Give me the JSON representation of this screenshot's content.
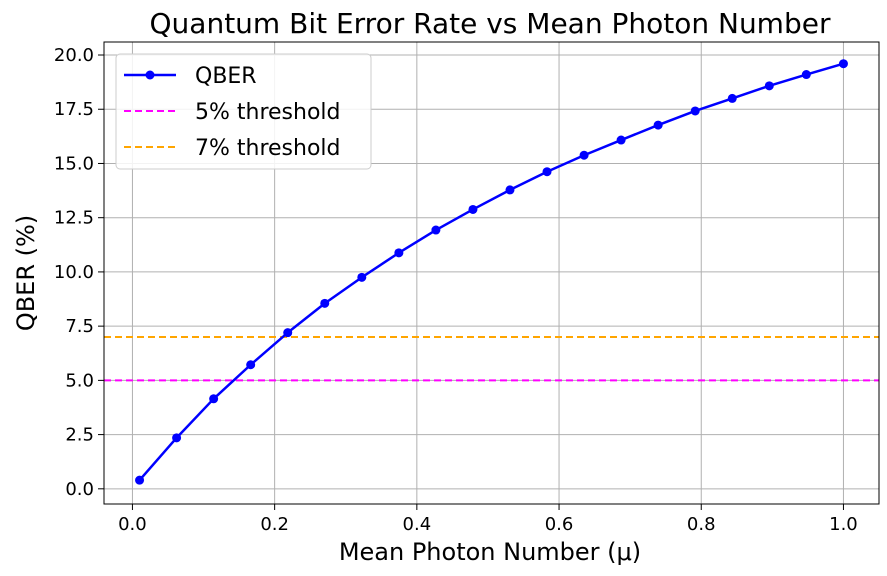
{
  "chart_data": {
    "type": "line",
    "title": "Quantum Bit Error Rate vs Mean Photon Number",
    "xlabel": "Mean Photon Number (μ)",
    "ylabel": "QBER (%)",
    "xlim": [
      -0.04,
      1.05
    ],
    "ylim": [
      -0.7,
      20.6
    ],
    "x_ticks": [
      0.0,
      0.2,
      0.4,
      0.6,
      0.8,
      1.0
    ],
    "x_tick_labels": [
      "0.0",
      "0.2",
      "0.4",
      "0.6",
      "0.8",
      "1.0"
    ],
    "y_ticks": [
      0.0,
      2.5,
      5.0,
      7.5,
      10.0,
      12.5,
      15.0,
      17.5,
      20.0
    ],
    "y_tick_labels": [
      "0.0",
      "2.5",
      "5.0",
      "7.5",
      "10.0",
      "12.5",
      "15.0",
      "17.5",
      "20.0"
    ],
    "grid": true,
    "legend_position": "top-left",
    "series": [
      {
        "name": "QBER",
        "color": "#0000ff",
        "marker": "circle",
        "x": [
          0.01,
          0.0621,
          0.1142,
          0.1663,
          0.2184,
          0.2705,
          0.3226,
          0.3747,
          0.4268,
          0.4789,
          0.531,
          0.5831,
          0.6352,
          0.6873,
          0.7394,
          0.7915,
          0.8436,
          0.8957,
          0.9478,
          1.0
        ],
        "values": [
          0.4,
          2.35,
          4.15,
          5.72,
          7.2,
          8.55,
          9.75,
          10.88,
          11.93,
          12.88,
          13.78,
          14.62,
          15.38,
          16.08,
          16.77,
          17.42,
          18.0,
          18.58,
          19.1,
          19.6
        ]
      }
    ],
    "thresholds": [
      {
        "name": "5% threshold",
        "value": 5.0,
        "color": "#ff00ff"
      },
      {
        "name": "7% threshold",
        "value": 7.0,
        "color": "#ffa500"
      }
    ]
  }
}
